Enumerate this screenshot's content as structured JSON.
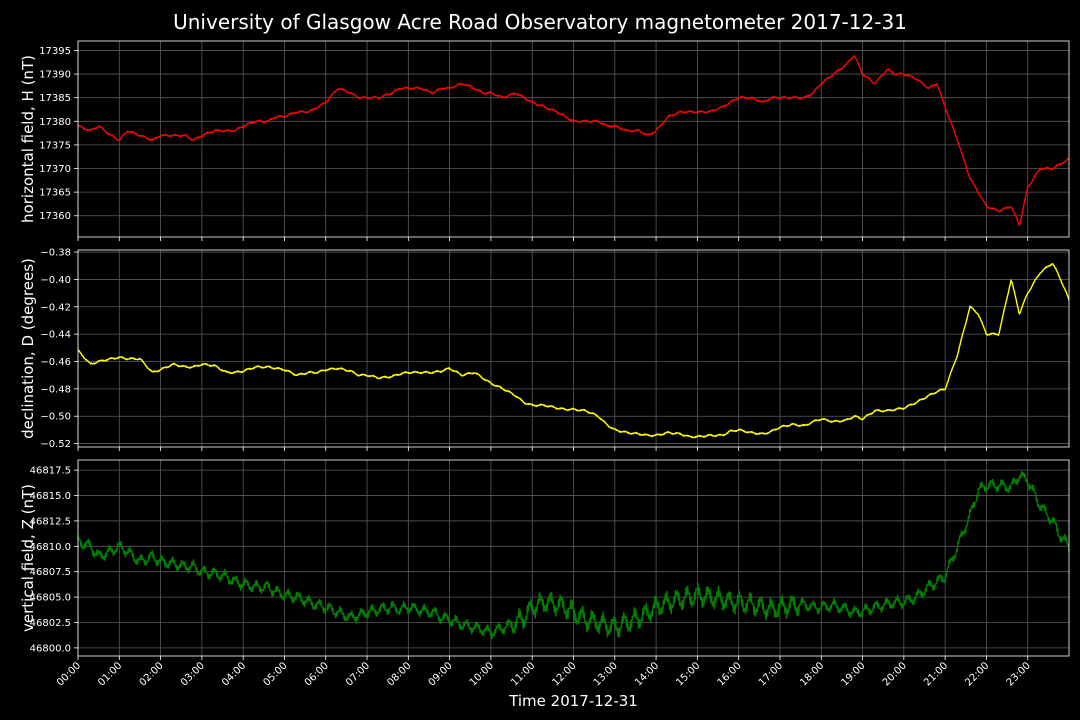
{
  "title": "University of Glasgow Acre Road Observatory magnetometer 2017-12-31",
  "xlabel": "Time 2017-12-31",
  "x_ticks": [
    "00:00",
    "01:00",
    "02:00",
    "03:00",
    "04:00",
    "05:00",
    "06:00",
    "07:00",
    "08:00",
    "09:00",
    "10:00",
    "11:00",
    "12:00",
    "13:00",
    "14:00",
    "15:00",
    "16:00",
    "17:00",
    "18:00",
    "19:00",
    "20:00",
    "21:00",
    "22:00",
    "23:00"
  ],
  "background": "#000000",
  "chart_data": [
    {
      "type": "line",
      "ylabel": "horizontal field, H (nT)",
      "color": "#ff0000",
      "xlim": [
        0,
        24
      ],
      "ylim": [
        17355.5,
        17397
      ],
      "yticks": [
        17360,
        17365,
        17370,
        17375,
        17380,
        17385,
        17390,
        17395
      ],
      "ytick_labels": [
        "17360",
        "17365",
        "17370",
        "17375",
        "17380",
        "17385",
        "17390",
        "17395"
      ],
      "grid": true,
      "x_hours": [
        0,
        0.3,
        0.5,
        0.8,
        1.0,
        1.2,
        1.5,
        1.8,
        2.0,
        2.3,
        2.6,
        2.8,
        3.0,
        3.3,
        3.6,
        3.8,
        4.0,
        4.3,
        4.6,
        4.8,
        5.0,
        5.3,
        5.6,
        5.8,
        6.0,
        6.3,
        6.6,
        6.8,
        7.0,
        7.3,
        7.6,
        7.8,
        8.0,
        8.3,
        8.6,
        8.8,
        9.0,
        9.3,
        9.6,
        9.8,
        10.0,
        10.3,
        10.6,
        10.8,
        11.0,
        11.3,
        11.6,
        11.8,
        12.0,
        12.3,
        12.6,
        12.8,
        13.0,
        13.3,
        13.6,
        13.8,
        14.0,
        14.3,
        14.6,
        14.8,
        15.0,
        15.3,
        15.6,
        15.8,
        16.0,
        16.3,
        16.6,
        16.8,
        17.0,
        17.3,
        17.6,
        17.8,
        18.0,
        18.3,
        18.6,
        18.8,
        19.0,
        19.3,
        19.6,
        19.8,
        20.0,
        20.3,
        20.6,
        20.8,
        21.0,
        21.3,
        21.6,
        21.8,
        22.0,
        22.3,
        22.6,
        22.8,
        23.0,
        23.3,
        23.6,
        23.8,
        24.0
      ],
      "y_values": [
        17379,
        17378,
        17379,
        17377,
        17376,
        17378,
        17377,
        17376,
        17377,
        17377,
        17377,
        17376,
        17377,
        17378,
        17378,
        17378,
        17379,
        17380,
        17380,
        17381,
        17381,
        17382,
        17382,
        17383,
        17384,
        17387,
        17386,
        17385,
        17385,
        17385,
        17386,
        17387,
        17387,
        17387,
        17386,
        17387,
        17387,
        17388,
        17387,
        17386,
        17386,
        17385,
        17386,
        17385,
        17384,
        17383,
        17382,
        17381,
        17380,
        17380,
        17380,
        17379,
        17379,
        17378,
        17378,
        17377,
        17378,
        17381,
        17382,
        17382,
        17382,
        17382,
        17383,
        17384,
        17385,
        17385,
        17384,
        17385,
        17385,
        17385,
        17385,
        17386,
        17388,
        17390,
        17392,
        17394,
        17390,
        17388,
        17391,
        17390,
        17390,
        17389,
        17387,
        17388,
        17383,
        17376,
        17368,
        17365,
        17362,
        17361,
        17362,
        17358,
        17366,
        17370,
        17370,
        17371,
        17372
      ]
    },
    {
      "type": "line",
      "ylabel": "declination, D (degrees)",
      "color": "#ffff00",
      "xlim": [
        0,
        24
      ],
      "ylim": [
        -0.5225,
        -0.3785
      ],
      "yticks": [
        -0.52,
        -0.5,
        -0.48,
        -0.46,
        -0.44,
        -0.42,
        -0.4,
        -0.38
      ],
      "ytick_labels": [
        "−0.52",
        "−0.50",
        "−0.48",
        "−0.46",
        "−0.44",
        "−0.42",
        "−0.40",
        "−0.38"
      ],
      "grid": true,
      "x_hours": [
        0,
        0.3,
        0.5,
        0.8,
        1.0,
        1.2,
        1.5,
        1.8,
        2.0,
        2.3,
        2.6,
        2.8,
        3.0,
        3.3,
        3.6,
        3.8,
        4.0,
        4.3,
        4.6,
        4.8,
        5.0,
        5.3,
        5.6,
        5.8,
        6.0,
        6.3,
        6.6,
        6.8,
        7.0,
        7.3,
        7.6,
        7.8,
        8.0,
        8.3,
        8.6,
        8.8,
        9.0,
        9.3,
        9.6,
        9.8,
        10.0,
        10.3,
        10.6,
        10.8,
        11.0,
        11.3,
        11.6,
        11.8,
        12.0,
        12.3,
        12.6,
        12.8,
        13.0,
        13.3,
        13.6,
        13.8,
        14.0,
        14.3,
        14.6,
        14.8,
        15.0,
        15.3,
        15.6,
        15.8,
        16.0,
        16.3,
        16.6,
        16.8,
        17.0,
        17.3,
        17.6,
        17.8,
        18.0,
        18.3,
        18.6,
        18.8,
        19.0,
        19.3,
        19.6,
        19.8,
        20.0,
        20.3,
        20.6,
        20.8,
        21.0,
        21.3,
        21.6,
        21.8,
        22.0,
        22.3,
        22.6,
        22.8,
        23.0,
        23.3,
        23.6,
        23.8,
        24.0
      ],
      "y_values": [
        -0.452,
        -0.462,
        -0.46,
        -0.458,
        -0.457,
        -0.458,
        -0.458,
        -0.468,
        -0.466,
        -0.462,
        -0.464,
        -0.464,
        -0.462,
        -0.463,
        -0.468,
        -0.468,
        -0.467,
        -0.464,
        -0.464,
        -0.465,
        -0.466,
        -0.47,
        -0.468,
        -0.468,
        -0.466,
        -0.465,
        -0.467,
        -0.47,
        -0.47,
        -0.472,
        -0.471,
        -0.469,
        -0.468,
        -0.468,
        -0.468,
        -0.467,
        -0.465,
        -0.47,
        -0.468,
        -0.472,
        -0.476,
        -0.48,
        -0.485,
        -0.49,
        -0.492,
        -0.492,
        -0.494,
        -0.495,
        -0.495,
        -0.496,
        -0.5,
        -0.506,
        -0.51,
        -0.512,
        -0.513,
        -0.514,
        -0.514,
        -0.512,
        -0.513,
        -0.515,
        -0.515,
        -0.514,
        -0.514,
        -0.511,
        -0.51,
        -0.512,
        -0.513,
        -0.511,
        -0.508,
        -0.506,
        -0.507,
        -0.504,
        -0.502,
        -0.504,
        -0.503,
        -0.5,
        -0.502,
        -0.496,
        -0.496,
        -0.495,
        -0.494,
        -0.49,
        -0.485,
        -0.482,
        -0.48,
        -0.455,
        -0.42,
        -0.425,
        -0.44,
        -0.44,
        -0.4,
        -0.425,
        -0.41,
        -0.395,
        -0.388,
        -0.4,
        -0.415
      ]
    },
    {
      "type": "line",
      "ylabel": "vertical field, Z (nT)",
      "color": "#008000",
      "xlim": [
        0,
        24
      ],
      "ylim": [
        46799.2,
        46818.5
      ],
      "yticks": [
        46800.0,
        46802.5,
        46805.0,
        46807.5,
        46810.0,
        46812.5,
        46815.0,
        46817.5
      ],
      "ytick_labels": [
        "46800.0",
        "46802.5",
        "46805.0",
        "46807.5",
        "46810.0",
        "46812.5",
        "46815.0",
        "46817.5"
      ],
      "grid": true,
      "x_hours": [
        0,
        0.3,
        0.5,
        0.8,
        1.0,
        1.2,
        1.5,
        1.8,
        2.0,
        2.3,
        2.6,
        2.8,
        3.0,
        3.3,
        3.6,
        3.8,
        4.0,
        4.3,
        4.6,
        4.8,
        5.0,
        5.3,
        5.6,
        5.8,
        6.0,
        6.3,
        6.6,
        6.8,
        7.0,
        7.3,
        7.6,
        7.8,
        8.0,
        8.3,
        8.6,
        8.8,
        9.0,
        9.3,
        9.6,
        9.8,
        10.0,
        10.3,
        10.6,
        10.8,
        11.0,
        11.3,
        11.6,
        11.8,
        12.0,
        12.3,
        12.6,
        12.8,
        13.0,
        13.3,
        13.6,
        13.8,
        14.0,
        14.3,
        14.6,
        14.8,
        15.0,
        15.3,
        15.6,
        15.8,
        16.0,
        16.3,
        16.6,
        16.8,
        17.0,
        17.3,
        17.6,
        17.8,
        18.0,
        18.3,
        18.6,
        18.8,
        19.0,
        19.3,
        19.6,
        19.8,
        20.0,
        20.3,
        20.6,
        20.8,
        21.0,
        21.3,
        21.6,
        21.8,
        22.0,
        22.3,
        22.6,
        22.8,
        23.0,
        23.3,
        23.6,
        23.8,
        24.0
      ],
      "y_values": [
        46810.5,
        46810.0,
        46809.0,
        46809.5,
        46810.0,
        46809.5,
        46808.5,
        46809.0,
        46808.5,
        46808.3,
        46808.0,
        46808.0,
        46807.5,
        46807.3,
        46807.0,
        46806.5,
        46806.3,
        46806.0,
        46806.0,
        46805.5,
        46805.2,
        46805.0,
        46804.5,
        46804.2,
        46804.0,
        46803.5,
        46803.0,
        46803.2,
        46803.5,
        46803.8,
        46804.0,
        46803.8,
        46804.0,
        46803.7,
        46803.5,
        46803.0,
        46802.8,
        46802.3,
        46802.0,
        46801.8,
        46801.5,
        46802.0,
        46802.5,
        46803.0,
        46804.0,
        46804.5,
        46804.3,
        46804.0,
        46803.5,
        46802.8,
        46802.5,
        46802.2,
        46802.0,
        46802.5,
        46803.0,
        46803.5,
        46804.0,
        46804.5,
        46804.8,
        46805.0,
        46805.2,
        46805.0,
        46804.8,
        46804.5,
        46804.5,
        46804.3,
        46804.0,
        46803.8,
        46804.0,
        46804.2,
        46804.3,
        46804.0,
        46804.0,
        46804.2,
        46803.8,
        46803.5,
        46803.6,
        46804.0,
        46804.3,
        46804.5,
        46804.5,
        46805.0,
        46806.0,
        46806.5,
        46807.0,
        46810.0,
        46813.0,
        46815.5,
        46816.0,
        46816.0,
        46815.8,
        46817.0,
        46816.5,
        46814.0,
        46812.5,
        46811.0,
        46810.0
      ]
    }
  ]
}
